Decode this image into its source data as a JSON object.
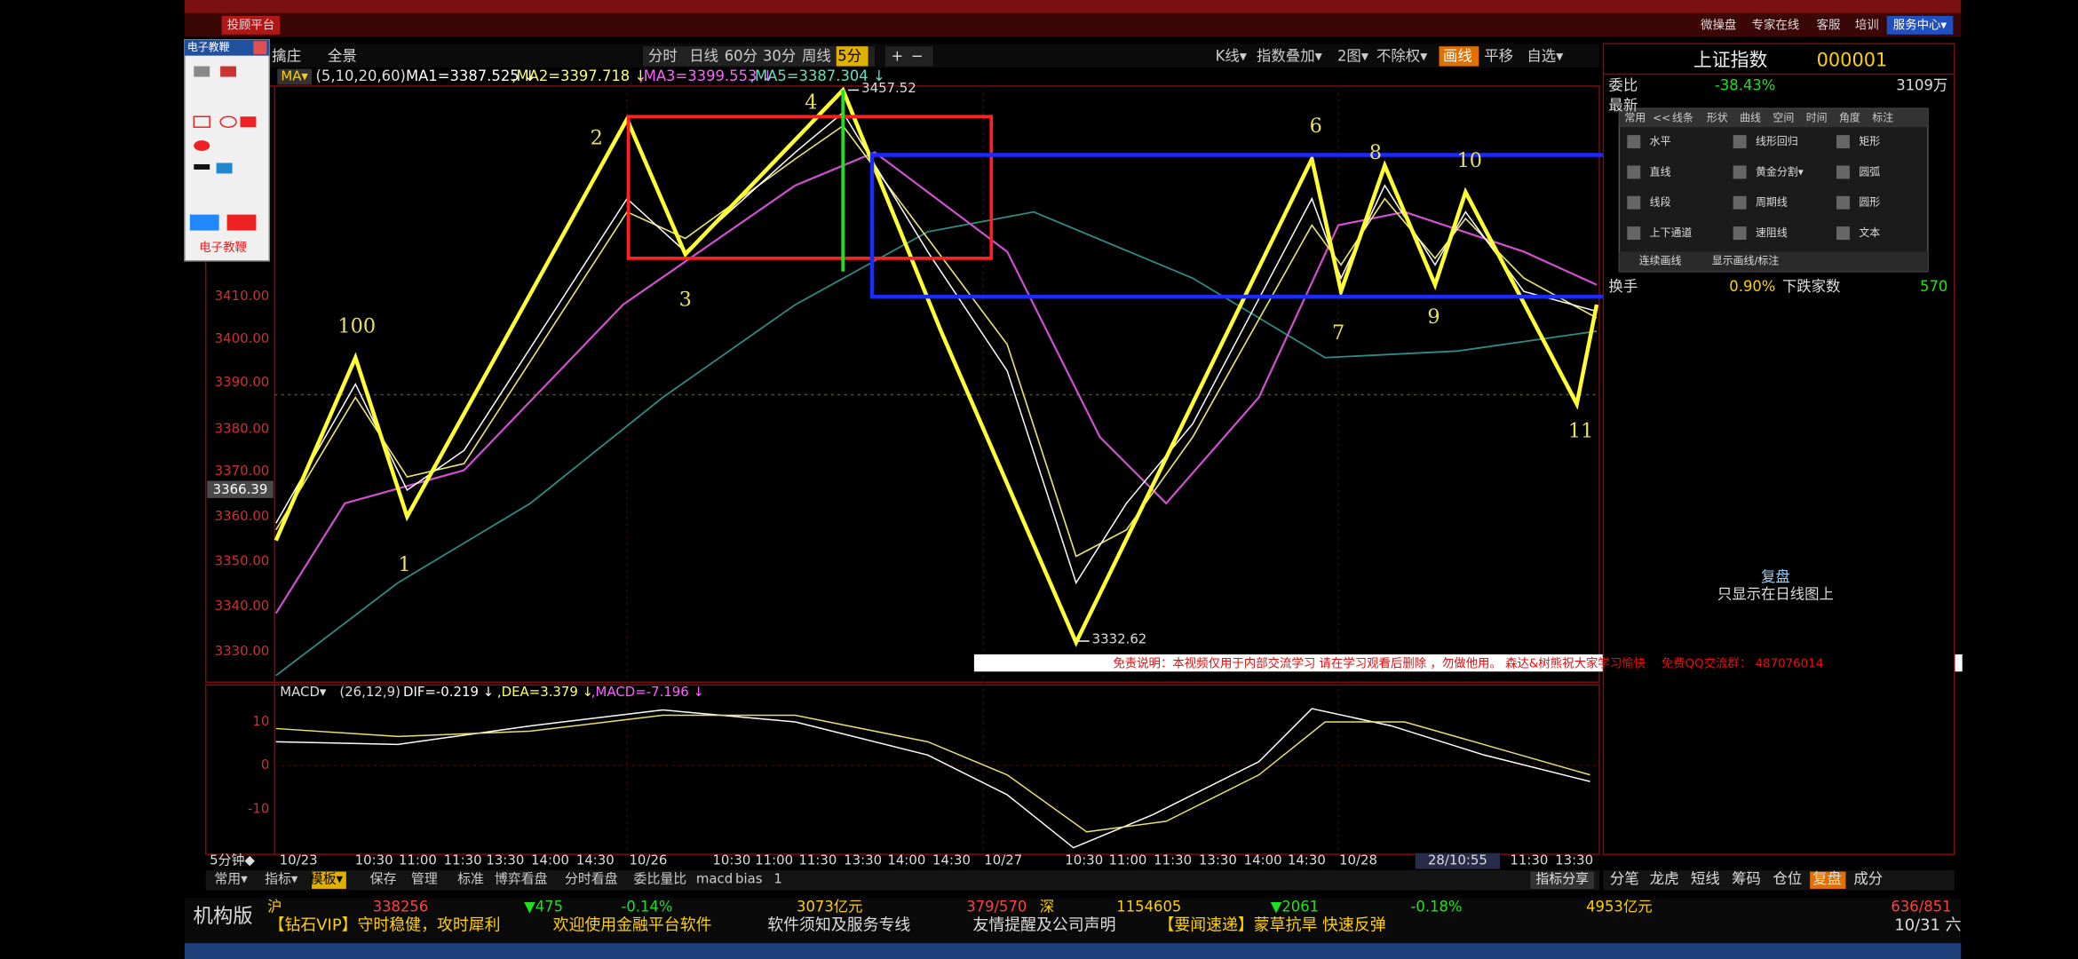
{
  "top_bar": {
    "platform": "投顾平台",
    "right_items": [
      "微操盘",
      "专家在线",
      "客服",
      "培训",
      "服务中心▾"
    ]
  },
  "tool_panel": {
    "title": "电子教鞭",
    "footer": "电子教鞭"
  },
  "toolbar": {
    "left": [
      "擒庄",
      "全景"
    ],
    "periods": [
      "分时",
      "日线",
      "60分",
      "30分",
      "周线",
      "5分"
    ],
    "zoom": [
      "+",
      "−"
    ],
    "right": [
      "K线▾",
      "指数叠加▾",
      "2图▾",
      "不除权▾",
      "画线",
      "平移",
      "自选▾"
    ]
  },
  "ma_row": {
    "label": "MA▾",
    "params": "(5,10,20,60)",
    "ma1": "MA1=3387.525 ↓",
    "ma2": ",MA2=3397.718 ↓",
    "ma3": ",MA3=3399.553 ↓",
    "ma5": ",MA5=3387.304 ↓"
  },
  "price_axis": {
    "ticks": [
      "3410.00",
      "3400.00",
      "3390.00",
      "3380.00",
      "3370.00",
      "3360.00",
      "3350.00",
      "3340.00",
      "3330.00"
    ],
    "current": "3366.39"
  },
  "chart_labels": {
    "wave_numbers": [
      "100",
      "1",
      "2",
      "3",
      "4",
      "6",
      "8",
      "10",
      "7",
      "9",
      "11"
    ],
    "high": "3457.52",
    "low": "3332.62"
  },
  "disclaimer": "免责说明：本视频仅用于内部交流学习 请在学习观看后删除 ，勿做他用。 森达&树熊祝大家学习愉快　 免费QQ交流群： 487076014",
  "macd_row": {
    "label": "MACD▾",
    "params": "(26,12,9)",
    "dif": "DIF=-0.219 ↓",
    "dea": ",DEA=3.379 ↓",
    "macd": ",MACD=-7.196 ↓"
  },
  "macd_axis": [
    "10",
    "0",
    "-10"
  ],
  "time_axis": [
    "5分钟◆",
    "10/23",
    "10:30",
    "11:00",
    "11:30",
    "13:30",
    "14:00",
    "14:30",
    "10/26",
    "10:30",
    "11:00",
    "11:30",
    "13:30",
    "14:00",
    "14:30",
    "10/27",
    "10:30",
    "11:00",
    "11:30",
    "13:30",
    "14:00",
    "14:30",
    "10/28",
    "28/10:55",
    "11:30",
    "13:30"
  ],
  "bottom_tabs": [
    "常用▾",
    "指标▾",
    "模板▾",
    "保存",
    "管理",
    "标准",
    "博弈看盘",
    "分时看盘",
    "委比量比",
    "macd",
    "bias",
    "1"
  ],
  "indicator_share": "指标分享",
  "quote_panel": {
    "name": "上证指数",
    "code": "000001",
    "rows": [
      [
        "委比",
        "-38.43%",
        "3109万"
      ],
      [
        "最新"
      ],
      [
        "换手",
        "0.90%",
        "下跌家数",
        "570"
      ]
    ]
  },
  "draw_tools": {
    "tabs": [
      "常用",
      "<<",
      "线条",
      "形状",
      "曲线",
      "空间",
      "时间",
      "角度",
      "标注"
    ],
    "items": [
      "水平",
      "线形回归",
      "矩形",
      "直线",
      "黄金分割▾",
      "圆弧",
      "线段",
      "周期线",
      "圆形",
      "上下通道",
      "速阻线",
      "文本"
    ],
    "options": [
      "连续画线",
      "显示画线/标注"
    ]
  },
  "replay": {
    "title": "复盘",
    "note": "只显示在日线图上"
  },
  "side_tabs": [
    "分笔",
    "龙虎",
    "短线",
    "筹码",
    "仓位",
    "复盘",
    "成分"
  ],
  "status": {
    "edition": "机构版",
    "line1": [
      "沪",
      "338256",
      "▼475",
      "-0.14%",
      "3073亿元",
      "379/570",
      "深",
      "1154605",
      "▼2061",
      "-0.18%",
      "4953亿元",
      "636/851"
    ],
    "line2": [
      "【钻石VIP】守时稳健，攻时犀利",
      "欢迎使用金融平台软件",
      "软件须知及服务专线",
      "友情提醒及公司声明",
      "【要闻速递】蒙草抗旱 快速反弹",
      "10/31 六"
    ]
  }
}
